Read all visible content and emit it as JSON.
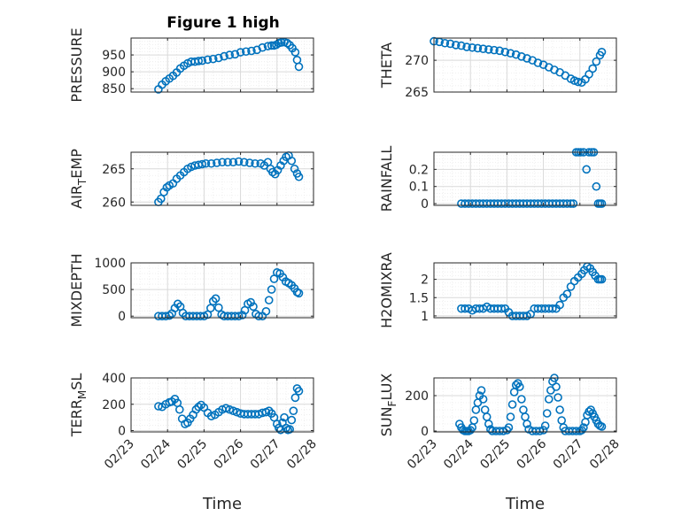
{
  "figure_title": "Figure 1 high",
  "colors": {
    "marker": "#0072bd",
    "axis": "#262626"
  },
  "chart_data": [
    {
      "type": "scatter",
      "id": "pressure",
      "column": "left",
      "row": 0,
      "title": "Figure 1 high",
      "ylabel": "PRESSURE",
      "ylabel_main": "PRESSURE",
      "ylabel_sub": "",
      "ylabel_tail": "",
      "ylim": [
        840,
        1000
      ],
      "yticks": [
        850,
        900,
        950
      ],
      "ytick_labels": [
        "850",
        "900",
        "950"
      ],
      "x": [
        23.75,
        23.85,
        23.95,
        24.05,
        24.15,
        24.25,
        24.35,
        24.45,
        24.55,
        24.65,
        24.75,
        24.85,
        24.95,
        25.1,
        25.25,
        25.4,
        25.55,
        25.7,
        25.85,
        26.0,
        26.15,
        26.3,
        26.45,
        26.6,
        26.75,
        26.85,
        26.92,
        26.98,
        27.05,
        27.12,
        27.2,
        27.28,
        27.35,
        27.42,
        27.5,
        27.55,
        27.6
      ],
      "y": [
        848,
        862,
        872,
        880,
        888,
        898,
        910,
        918,
        925,
        930,
        930,
        932,
        933,
        936,
        938,
        941,
        946,
        950,
        952,
        958,
        960,
        962,
        965,
        972,
        976,
        978,
        978,
        980,
        985,
        987,
        988,
        985,
        979,
        970,
        958,
        935,
        915
      ]
    },
    {
      "type": "scatter",
      "id": "theta",
      "column": "right",
      "row": 0,
      "ylabel": "THETA",
      "ylabel_main": "THETA",
      "ylabel_sub": "",
      "ylabel_tail": "",
      "ylim": [
        265,
        273.5
      ],
      "yticks": [
        265,
        270
      ],
      "ytick_labels": [
        "265",
        "270"
      ],
      "x": [
        23.0,
        23.15,
        23.3,
        23.45,
        23.6,
        23.75,
        23.9,
        24.05,
        24.2,
        24.35,
        24.5,
        24.65,
        24.8,
        24.95,
        25.1,
        25.25,
        25.4,
        25.55,
        25.7,
        25.85,
        26.0,
        26.15,
        26.3,
        26.45,
        26.6,
        26.75,
        26.85,
        26.95,
        27.05,
        27.15,
        27.25,
        27.35,
        27.45,
        27.55,
        27.6
      ],
      "y": [
        273.0,
        272.9,
        272.7,
        272.6,
        272.4,
        272.3,
        272.1,
        272.0,
        271.9,
        271.8,
        271.7,
        271.6,
        271.5,
        271.3,
        271.1,
        270.9,
        270.6,
        270.3,
        270.0,
        269.6,
        269.3,
        268.9,
        268.5,
        268.1,
        267.6,
        267.1,
        266.8,
        266.6,
        266.5,
        267.0,
        267.8,
        268.7,
        269.8,
        270.8,
        271.3
      ]
    },
    {
      "type": "scatter",
      "id": "air_temp",
      "column": "left",
      "row": 1,
      "ylabel": "AIR_TEMP",
      "ylabel_main": "AIR",
      "ylabel_sub": "T",
      "ylabel_tail": "EMP",
      "ylim": [
        259.5,
        267.5
      ],
      "yticks": [
        260,
        265
      ],
      "ytick_labels": [
        "260",
        "265"
      ],
      "x": [
        23.75,
        23.82,
        23.9,
        23.98,
        24.05,
        24.15,
        24.25,
        24.35,
        24.45,
        24.55,
        24.65,
        24.75,
        24.85,
        24.95,
        25.05,
        25.2,
        25.35,
        25.5,
        25.65,
        25.8,
        25.95,
        26.1,
        26.25,
        26.4,
        26.55,
        26.65,
        26.75,
        26.82,
        26.88,
        26.95,
        27.02,
        27.1,
        27.18,
        27.25,
        27.32,
        27.4,
        27.48,
        27.55,
        27.6
      ],
      "y": [
        260.0,
        260.5,
        261.5,
        262.2,
        262.5,
        262.8,
        263.5,
        264.0,
        264.5,
        265.0,
        265.3,
        265.5,
        265.6,
        265.7,
        265.8,
        265.8,
        265.9,
        266.0,
        266.0,
        266.0,
        266.1,
        266.0,
        265.9,
        265.8,
        265.8,
        265.5,
        266.0,
        265.0,
        264.5,
        264.2,
        264.8,
        265.5,
        266.2,
        266.8,
        267.0,
        266.2,
        265.0,
        264.3,
        263.8
      ]
    },
    {
      "type": "scatter",
      "id": "rainfall",
      "column": "right",
      "row": 1,
      "ylabel": "RAINFALL",
      "ylabel_main": "RAINFALL",
      "ylabel_sub": "",
      "ylabel_tail": "",
      "ylim": [
        -0.01,
        0.3
      ],
      "yticks": [
        0,
        0.1,
        0.2
      ],
      "ytick_labels": [
        "0",
        "0.1",
        "0.2"
      ],
      "x": [
        23.75,
        23.85,
        23.95,
        24.05,
        24.15,
        24.25,
        24.35,
        24.45,
        24.55,
        24.65,
        24.75,
        24.85,
        24.95,
        25.05,
        25.15,
        25.25,
        25.35,
        25.45,
        25.55,
        25.65,
        25.75,
        25.85,
        25.95,
        26.05,
        26.15,
        26.25,
        26.35,
        26.45,
        26.55,
        26.65,
        26.75,
        26.82,
        26.9,
        26.96,
        27.02,
        27.1,
        27.18,
        27.25,
        27.32,
        27.38,
        27.45,
        27.5,
        27.55,
        27.6
      ],
      "y": [
        0,
        0,
        0,
        0,
        0,
        0,
        0,
        0,
        0,
        0,
        0,
        0,
        0,
        0,
        0,
        0,
        0,
        0,
        0,
        0,
        0,
        0,
        0,
        0,
        0,
        0,
        0,
        0,
        0,
        0,
        0,
        0,
        0.3,
        0.3,
        0.3,
        0.3,
        0.2,
        0.3,
        0.3,
        0.3,
        0.1,
        0,
        0,
        0
      ]
    },
    {
      "type": "scatter",
      "id": "mixdepth",
      "column": "left",
      "row": 2,
      "ylabel": "MIXDEPTH",
      "ylabel_main": "MIXDEPTH",
      "ylabel_sub": "",
      "ylabel_tail": "",
      "ylim": [
        -30,
        1000
      ],
      "yticks": [
        0,
        500,
        1000
      ],
      "ytick_labels": [
        "0",
        "500",
        "1000"
      ],
      "x": [
        23.75,
        23.85,
        23.95,
        24.05,
        24.12,
        24.2,
        24.28,
        24.35,
        24.42,
        24.5,
        24.6,
        24.7,
        24.8,
        24.9,
        25.0,
        25.1,
        25.18,
        25.25,
        25.32,
        25.4,
        25.48,
        25.55,
        25.65,
        25.75,
        25.85,
        25.95,
        26.05,
        26.12,
        26.2,
        26.28,
        26.35,
        26.42,
        26.5,
        26.6,
        26.7,
        26.78,
        26.85,
        26.92,
        27.0,
        27.08,
        27.16,
        27.24,
        27.32,
        27.4,
        27.48,
        27.55,
        27.6
      ],
      "y": [
        0,
        0,
        0,
        10,
        50,
        150,
        230,
        180,
        60,
        0,
        0,
        0,
        0,
        0,
        0,
        30,
        150,
        280,
        330,
        160,
        30,
        0,
        0,
        0,
        0,
        0,
        20,
        110,
        230,
        260,
        180,
        40,
        0,
        0,
        90,
        300,
        500,
        700,
        820,
        800,
        730,
        650,
        620,
        580,
        520,
        450,
        430
      ]
    },
    {
      "type": "scatter",
      "id": "h2omixra",
      "column": "right",
      "row": 2,
      "ylabel": "H2OMIXRA",
      "ylabel_main": "H2OMIXRA",
      "ylabel_sub": "",
      "ylabel_tail": "",
      "ylim": [
        0.95,
        2.45
      ],
      "yticks": [
        1,
        1.5,
        2
      ],
      "ytick_labels": [
        "1",
        "1.5",
        "2"
      ],
      "x": [
        23.75,
        23.85,
        23.95,
        24.05,
        24.15,
        24.25,
        24.35,
        24.45,
        24.55,
        24.65,
        24.75,
        24.85,
        24.95,
        25.05,
        25.15,
        25.25,
        25.35,
        25.45,
        25.55,
        25.65,
        25.75,
        25.85,
        25.95,
        26.05,
        26.15,
        26.25,
        26.35,
        26.45,
        26.55,
        26.65,
        26.75,
        26.85,
        26.95,
        27.05,
        27.12,
        27.2,
        27.28,
        27.35,
        27.42,
        27.5,
        27.55,
        27.6
      ],
      "y": [
        1.2,
        1.2,
        1.2,
        1.15,
        1.2,
        1.2,
        1.2,
        1.25,
        1.2,
        1.2,
        1.2,
        1.2,
        1.2,
        1.1,
        1.0,
        1.0,
        1.0,
        1.0,
        1.0,
        1.05,
        1.2,
        1.2,
        1.2,
        1.2,
        1.2,
        1.2,
        1.2,
        1.3,
        1.5,
        1.6,
        1.8,
        1.95,
        2.05,
        2.15,
        2.25,
        2.35,
        2.3,
        2.2,
        2.1,
        2.0,
        2.0,
        2.0
      ]
    },
    {
      "type": "scatter",
      "id": "terr_msl",
      "column": "left",
      "row": 3,
      "ylabel": "TERR_MSL",
      "ylabel_main": "TERR",
      "ylabel_sub": "M",
      "ylabel_tail": "SL",
      "ylim": [
        -10,
        400
      ],
      "yticks": [
        0,
        200,
        400
      ],
      "ytick_labels": [
        "0",
        "200",
        "400"
      ],
      "x": [
        23.75,
        23.85,
        23.95,
        24.05,
        24.12,
        24.2,
        24.27,
        24.33,
        24.4,
        24.48,
        24.55,
        24.62,
        24.7,
        24.78,
        24.85,
        24.92,
        25.0,
        25.1,
        25.2,
        25.3,
        25.4,
        25.5,
        25.6,
        25.7,
        25.8,
        25.9,
        26.0,
        26.1,
        26.2,
        26.3,
        26.4,
        26.5,
        26.6,
        26.7,
        26.78,
        26.85,
        26.92,
        27.0,
        27.05,
        27.1,
        27.15,
        27.2,
        27.25,
        27.3,
        27.35,
        27.4,
        27.45,
        27.5,
        27.55,
        27.6
      ],
      "y": [
        185,
        180,
        200,
        215,
        220,
        240,
        210,
        160,
        90,
        50,
        60,
        90,
        120,
        160,
        180,
        195,
        175,
        135,
        110,
        120,
        140,
        160,
        170,
        160,
        150,
        140,
        130,
        125,
        125,
        125,
        125,
        125,
        135,
        140,
        150,
        130,
        100,
        50,
        20,
        5,
        60,
        100,
        20,
        5,
        10,
        80,
        150,
        250,
        320,
        300
      ]
    },
    {
      "type": "scatter",
      "id": "sun_flux",
      "column": "right",
      "row": 3,
      "ylabel": "SUN_FLUX",
      "ylabel_main": "SUN",
      "ylabel_sub": "F",
      "ylabel_tail": "LUX",
      "ylim": [
        -5,
        300
      ],
      "yticks": [
        0,
        200
      ],
      "ytick_labels": [
        "0",
        "200"
      ],
      "x": [
        23.7,
        23.75,
        23.8,
        23.85,
        23.9,
        23.95,
        24.0,
        24.05,
        24.1,
        24.15,
        24.2,
        24.25,
        24.3,
        24.35,
        24.4,
        24.45,
        24.5,
        24.55,
        24.6,
        24.7,
        24.8,
        24.9,
        25.0,
        25.05,
        25.1,
        25.15,
        25.2,
        25.25,
        25.3,
        25.35,
        25.4,
        25.45,
        25.5,
        25.55,
        25.6,
        25.7,
        25.8,
        25.9,
        26.0,
        26.05,
        26.1,
        26.15,
        26.2,
        26.25,
        26.3,
        26.35,
        26.4,
        26.45,
        26.5,
        26.55,
        26.6,
        26.7,
        26.8,
        26.9,
        27.0,
        27.05,
        27.1,
        27.15,
        27.2,
        27.25,
        27.3,
        27.35,
        27.4,
        27.45,
        27.5,
        27.55,
        27.6
      ],
      "y": [
        40,
        20,
        5,
        0,
        0,
        0,
        5,
        20,
        60,
        120,
        160,
        200,
        230,
        180,
        120,
        80,
        40,
        10,
        0,
        0,
        0,
        0,
        5,
        20,
        80,
        150,
        220,
        260,
        270,
        250,
        180,
        120,
        80,
        40,
        10,
        0,
        0,
        0,
        5,
        30,
        100,
        180,
        230,
        280,
        300,
        250,
        190,
        120,
        60,
        20,
        0,
        0,
        0,
        0,
        0,
        5,
        20,
        50,
        90,
        110,
        120,
        100,
        80,
        60,
        40,
        30,
        25
      ]
    }
  ],
  "xaxis": {
    "label": "Time",
    "xlim": [
      23.0,
      28.0
    ],
    "ticks": [
      23,
      24,
      25,
      26,
      27,
      28
    ],
    "tick_labels": [
      "02/23",
      "02/24",
      "02/25",
      "02/26",
      "02/27",
      "02/28"
    ]
  }
}
